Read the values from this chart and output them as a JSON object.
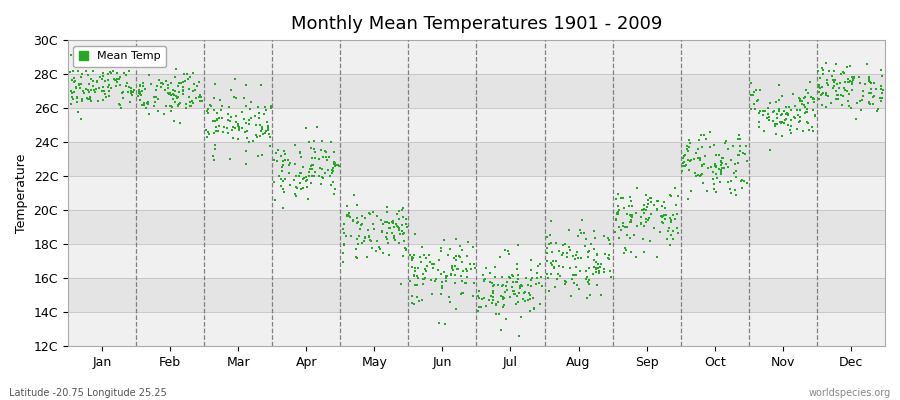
{
  "title": "Monthly Mean Temperatures 1901 - 2009",
  "ylabel": "Temperature",
  "xlabel_labels": [
    "Jan",
    "Feb",
    "Mar",
    "Apr",
    "May",
    "Jun",
    "Jul",
    "Aug",
    "Sep",
    "Oct",
    "Nov",
    "Dec"
  ],
  "ytick_labels": [
    "12C",
    "14C",
    "16C",
    "18C",
    "20C",
    "22C",
    "24C",
    "26C",
    "28C",
    "30C"
  ],
  "ytick_values": [
    12,
    14,
    16,
    18,
    20,
    22,
    24,
    26,
    28,
    30
  ],
  "ylim": [
    12,
    30
  ],
  "legend_label": "Mean Temp",
  "marker_color": "#22aa22",
  "bg_color": "#e8e8e8",
  "band_light": "#ebebeb",
  "band_dark": "#d8d8d8",
  "bottom_left_text": "Latitude -20.75 Longitude 25.25",
  "bottom_right_text": "worldspecies.org",
  "monthly_means": [
    27.2,
    26.8,
    25.2,
    22.5,
    18.8,
    16.2,
    15.5,
    16.8,
    19.5,
    22.8,
    25.8,
    27.2
  ],
  "monthly_stds": [
    0.7,
    0.8,
    0.9,
    0.9,
    0.9,
    1.0,
    1.0,
    1.0,
    1.0,
    1.0,
    0.8,
    0.7
  ],
  "n_years": 109,
  "seed": 42
}
